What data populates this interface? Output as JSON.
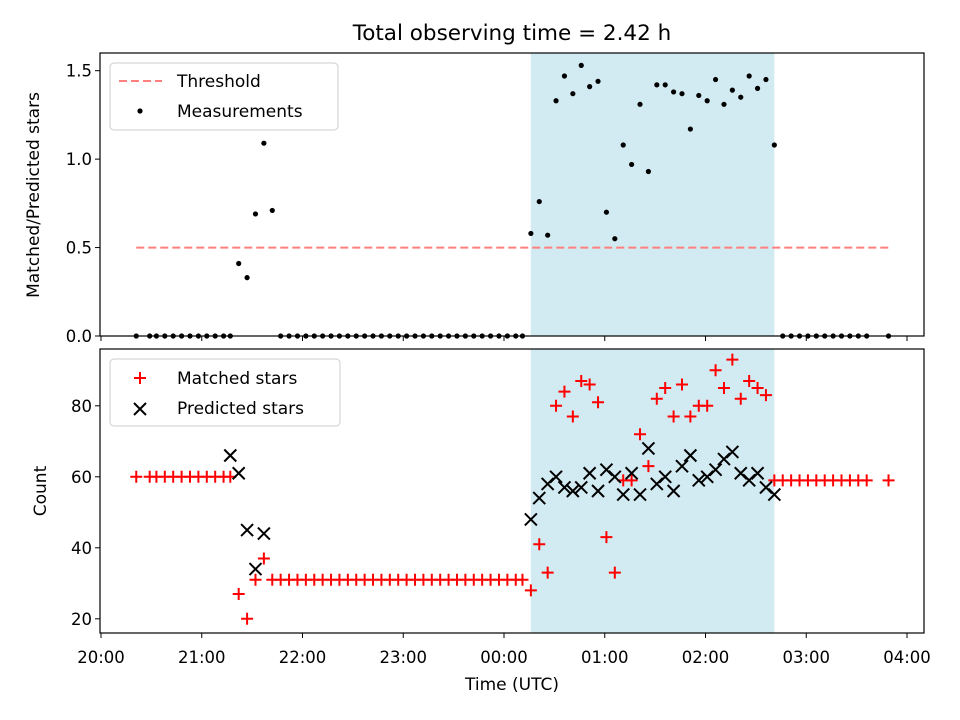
{
  "chart_data": [
    {
      "type": "scatter",
      "title": "Total observing time = 2.42 h",
      "xlabel": "Time (UTC)",
      "ylabel": "Matched/Predicted stars",
      "ylim": [
        0,
        1.6
      ],
      "yticks": [
        0.0,
        0.5,
        1.0,
        1.5
      ],
      "ytick_labels": [
        "0.0",
        "0.5",
        "1.0",
        "1.5"
      ],
      "legend_position": "top-left",
      "shaded_region": {
        "x_start": "00:16",
        "x_end": "02:41",
        "color": "#add8e6"
      },
      "threshold": {
        "name": "Threshold",
        "value": 0.5,
        "x_start": "20:21",
        "x_end": "03:49",
        "color": "#ff7f7f"
      },
      "series": [
        {
          "name": "Measurements",
          "color": "#000000",
          "x": [
            "20:21",
            "20:29",
            "20:33",
            "20:38",
            "20:43",
            "20:48",
            "20:53",
            "20:58",
            "21:03",
            "21:08",
            "21:13",
            "21:17",
            "21:22",
            "21:27",
            "21:32",
            "21:37",
            "21:42",
            "21:47",
            "21:52",
            "21:57",
            "22:02",
            "22:07",
            "22:12",
            "22:17",
            "22:22",
            "22:27",
            "22:32",
            "22:37",
            "22:42",
            "22:47",
            "22:52",
            "22:57",
            "23:02",
            "23:07",
            "23:12",
            "23:17",
            "23:22",
            "23:27",
            "23:32",
            "23:37",
            "23:42",
            "23:47",
            "23:52",
            "23:57",
            "00:02",
            "00:07",
            "00:11",
            "00:16",
            "00:21",
            "00:26",
            "00:31",
            "00:36",
            "00:41",
            "00:46",
            "00:51",
            "00:56",
            "01:01",
            "01:06",
            "01:11",
            "01:16",
            "01:21",
            "01:26",
            "01:31",
            "01:36",
            "01:41",
            "01:46",
            "01:51",
            "01:56",
            "02:01",
            "02:06",
            "02:11",
            "02:16",
            "02:21",
            "02:26",
            "02:31",
            "02:36",
            "02:41",
            "02:46",
            "02:51",
            "02:56",
            "03:01",
            "03:06",
            "03:11",
            "03:16",
            "03:21",
            "03:26",
            "03:31",
            "03:36",
            "03:49"
          ],
          "y": [
            0,
            0,
            0,
            0,
            0,
            0,
            0,
            0,
            0,
            0,
            0,
            0,
            0.41,
            0.33,
            0.69,
            1.09,
            0.71,
            0,
            0,
            0,
            0,
            0,
            0,
            0,
            0,
            0,
            0,
            0,
            0,
            0,
            0,
            0,
            0,
            0,
            0,
            0,
            0,
            0,
            0,
            0,
            0,
            0,
            0,
            0,
            0,
            0,
            0,
            0.58,
            0.76,
            0.57,
            1.33,
            1.47,
            1.37,
            1.53,
            1.41,
            1.44,
            0.7,
            0.55,
            1.08,
            0.97,
            1.31,
            0.93,
            1.42,
            1.42,
            1.38,
            1.37,
            1.17,
            1.36,
            1.33,
            1.45,
            1.31,
            1.39,
            1.35,
            1.47,
            1.4,
            1.45,
            1.08,
            0,
            0,
            0,
            0,
            0,
            0,
            0,
            0,
            0,
            0,
            0,
            0
          ]
        }
      ]
    },
    {
      "type": "scatter",
      "xlabel": "Time (UTC)",
      "ylabel": "Count",
      "ylim": [
        16,
        96
      ],
      "yticks": [
        20,
        40,
        60,
        80
      ],
      "ytick_labels": [
        "20",
        "40",
        "60",
        "80"
      ],
      "xticks": [
        "20:00",
        "21:00",
        "22:00",
        "23:00",
        "00:00",
        "01:00",
        "02:00",
        "03:00",
        "04:00"
      ],
      "legend_position": "top-left",
      "shaded_region": {
        "x_start": "00:16",
        "x_end": "02:41",
        "color": "#add8e6"
      },
      "series": [
        {
          "name": "Matched stars",
          "marker": "plus",
          "color": "#ff0000",
          "x": [
            "20:21",
            "20:29",
            "20:33",
            "20:38",
            "20:43",
            "20:48",
            "20:53",
            "20:58",
            "21:03",
            "21:08",
            "21:13",
            "21:17",
            "21:22",
            "21:27",
            "21:32",
            "21:37",
            "21:42",
            "21:47",
            "21:52",
            "21:57",
            "22:02",
            "22:07",
            "22:12",
            "22:17",
            "22:22",
            "22:27",
            "22:32",
            "22:37",
            "22:42",
            "22:47",
            "22:52",
            "22:57",
            "23:02",
            "23:07",
            "23:12",
            "23:17",
            "23:22",
            "23:27",
            "23:32",
            "23:37",
            "23:42",
            "23:47",
            "23:52",
            "23:57",
            "00:02",
            "00:07",
            "00:11",
            "00:16",
            "00:21",
            "00:26",
            "00:31",
            "00:36",
            "00:41",
            "00:46",
            "00:51",
            "00:56",
            "01:01",
            "01:06",
            "01:11",
            "01:16",
            "01:21",
            "01:26",
            "01:31",
            "01:36",
            "01:41",
            "01:46",
            "01:51",
            "01:56",
            "02:01",
            "02:06",
            "02:11",
            "02:16",
            "02:21",
            "02:26",
            "02:31",
            "02:36",
            "02:41",
            "02:46",
            "02:51",
            "02:56",
            "03:01",
            "03:06",
            "03:11",
            "03:16",
            "03:21",
            "03:26",
            "03:31",
            "03:36",
            "03:49"
          ],
          "y": [
            60,
            60,
            60,
            60,
            60,
            60,
            60,
            60,
            60,
            60,
            60,
            60,
            27,
            20,
            31,
            37,
            31,
            31,
            31,
            31,
            31,
            31,
            31,
            31,
            31,
            31,
            31,
            31,
            31,
            31,
            31,
            31,
            31,
            31,
            31,
            31,
            31,
            31,
            31,
            31,
            31,
            31,
            31,
            31,
            31,
            31,
            31,
            28,
            41,
            33,
            80,
            84,
            77,
            87,
            86,
            81,
            43,
            33,
            59,
            59,
            72,
            63,
            82,
            85,
            77,
            86,
            77,
            80,
            80,
            90,
            85,
            93,
            82,
            87,
            85,
            83,
            59,
            59,
            59,
            59,
            59,
            59,
            59,
            59,
            59,
            59,
            59,
            59,
            59
          ]
        },
        {
          "name": "Predicted stars",
          "marker": "cross",
          "color": "#000000",
          "x": [
            "21:17",
            "21:22",
            "21:27",
            "21:32",
            "21:37",
            "00:16",
            "00:21",
            "00:26",
            "00:31",
            "00:36",
            "00:41",
            "00:46",
            "00:51",
            "00:56",
            "01:01",
            "01:06",
            "01:11",
            "01:16",
            "01:21",
            "01:26",
            "01:31",
            "01:36",
            "01:41",
            "01:46",
            "01:51",
            "01:56",
            "02:01",
            "02:06",
            "02:11",
            "02:16",
            "02:21",
            "02:26",
            "02:31",
            "02:36",
            "02:41"
          ],
          "y": [
            66,
            61,
            45,
            34,
            44,
            48,
            54,
            58,
            60,
            57,
            56,
            57,
            61,
            56,
            62,
            60,
            55,
            61,
            55,
            68,
            58,
            60,
            56,
            63,
            66,
            59,
            60,
            62,
            65,
            67,
            61,
            59,
            61,
            57,
            55
          ]
        }
      ]
    }
  ]
}
